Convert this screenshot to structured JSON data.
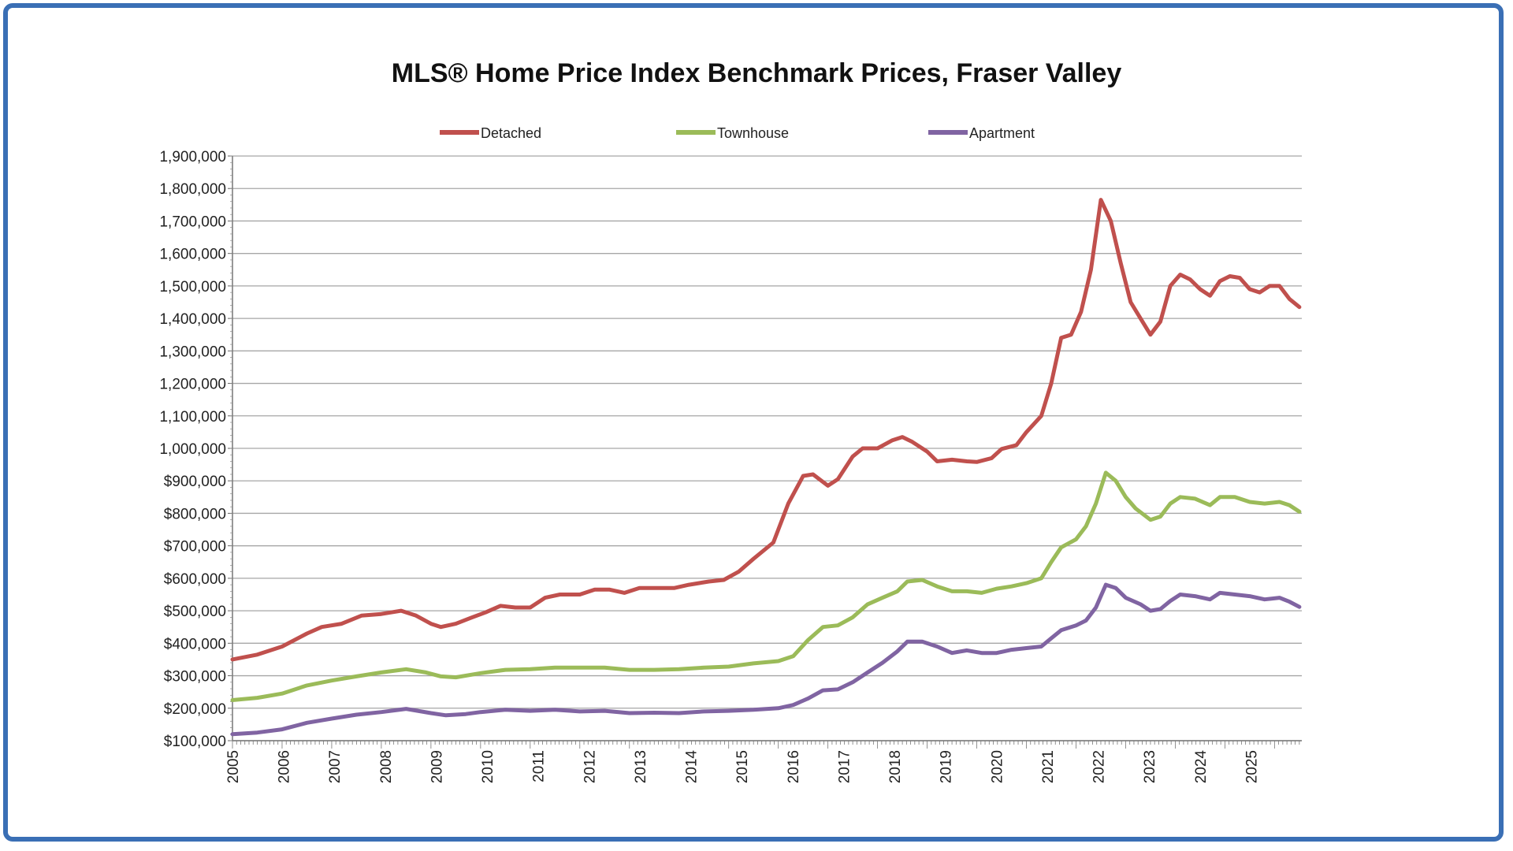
{
  "chart_data": {
    "type": "line",
    "title": "MLS® Home Price Index Benchmark Prices, Fraser Valley",
    "xlabel": "",
    "ylabel": "",
    "xlim": [
      2005.0,
      2025.7
    ],
    "ylim": [
      100000,
      1900000
    ],
    "x_ticks": [
      "2005",
      "2006",
      "2007",
      "2008",
      "2009",
      "2010",
      "2011",
      "2012",
      "2013",
      "2014",
      "2015",
      "2016",
      "2017",
      "2018",
      "2019",
      "2020",
      "2021",
      "2022",
      "2023",
      "2024",
      "2025"
    ],
    "y_ticks": [
      {
        "value": 100000,
        "label": "$100,000"
      },
      {
        "value": 200000,
        "label": "$200,000"
      },
      {
        "value": 300000,
        "label": "$300,000"
      },
      {
        "value": 400000,
        "label": "$400,000"
      },
      {
        "value": 500000,
        "label": "$500,000"
      },
      {
        "value": 600000,
        "label": "$600,000"
      },
      {
        "value": 700000,
        "label": "$700,000"
      },
      {
        "value": 800000,
        "label": "$800,000"
      },
      {
        "value": 900000,
        "label": "$900,000"
      },
      {
        "value": 1000000,
        "label": "1,000,000"
      },
      {
        "value": 1100000,
        "label": "1,100,000"
      },
      {
        "value": 1200000,
        "label": "1,200,000"
      },
      {
        "value": 1300000,
        "label": "1,300,000"
      },
      {
        "value": 1400000,
        "label": "1,400,000"
      },
      {
        "value": 1500000,
        "label": "1,500,000"
      },
      {
        "value": 1600000,
        "label": "1,600,000"
      },
      {
        "value": 1700000,
        "label": "1,700,000"
      },
      {
        "value": 1800000,
        "label": "1,800,000"
      },
      {
        "value": 1900000,
        "label": "1,900,000"
      }
    ],
    "grid": true,
    "legend_position": "top",
    "series": [
      {
        "name": "Detached",
        "color": "#c0504d",
        "points": [
          [
            2005.0,
            350000
          ],
          [
            2005.5,
            365000
          ],
          [
            2006.0,
            390000
          ],
          [
            2006.5,
            430000
          ],
          [
            2006.8,
            450000
          ],
          [
            2007.2,
            460000
          ],
          [
            2007.6,
            485000
          ],
          [
            2008.0,
            490000
          ],
          [
            2008.4,
            500000
          ],
          [
            2008.7,
            485000
          ],
          [
            2009.0,
            460000
          ],
          [
            2009.2,
            450000
          ],
          [
            2009.5,
            460000
          ],
          [
            2009.8,
            478000
          ],
          [
            2010.1,
            495000
          ],
          [
            2010.4,
            515000
          ],
          [
            2010.7,
            510000
          ],
          [
            2011.0,
            510000
          ],
          [
            2011.3,
            540000
          ],
          [
            2011.6,
            550000
          ],
          [
            2012.0,
            550000
          ],
          [
            2012.3,
            565000
          ],
          [
            2012.6,
            565000
          ],
          [
            2012.9,
            555000
          ],
          [
            2013.2,
            570000
          ],
          [
            2013.6,
            570000
          ],
          [
            2013.9,
            570000
          ],
          [
            2014.2,
            580000
          ],
          [
            2014.6,
            590000
          ],
          [
            2014.9,
            595000
          ],
          [
            2015.2,
            620000
          ],
          [
            2015.5,
            660000
          ],
          [
            2015.9,
            710000
          ],
          [
            2016.2,
            830000
          ],
          [
            2016.5,
            915000
          ],
          [
            2016.7,
            920000
          ],
          [
            2017.0,
            885000
          ],
          [
            2017.2,
            905000
          ],
          [
            2017.5,
            975000
          ],
          [
            2017.7,
            1000000
          ],
          [
            2018.0,
            1000000
          ],
          [
            2018.3,
            1025000
          ],
          [
            2018.5,
            1035000
          ],
          [
            2018.7,
            1020000
          ],
          [
            2019.0,
            990000
          ],
          [
            2019.2,
            960000
          ],
          [
            2019.5,
            965000
          ],
          [
            2019.8,
            960000
          ],
          [
            2020.0,
            958000
          ],
          [
            2020.3,
            970000
          ],
          [
            2020.5,
            998000
          ],
          [
            2020.8,
            1010000
          ],
          [
            2021.0,
            1050000
          ],
          [
            2021.3,
            1100000
          ],
          [
            2021.5,
            1200000
          ],
          [
            2021.7,
            1340000
          ],
          [
            2021.9,
            1350000
          ],
          [
            2022.1,
            1420000
          ],
          [
            2022.3,
            1550000
          ],
          [
            2022.5,
            1765000
          ],
          [
            2022.7,
            1700000
          ],
          [
            2022.9,
            1570000
          ],
          [
            2023.1,
            1450000
          ],
          [
            2023.3,
            1400000
          ],
          [
            2023.5,
            1350000
          ],
          [
            2023.7,
            1390000
          ],
          [
            2023.9,
            1500000
          ],
          [
            2024.1,
            1535000
          ],
          [
            2024.3,
            1520000
          ],
          [
            2024.5,
            1490000
          ],
          [
            2024.7,
            1470000
          ],
          [
            2024.9,
            1515000
          ],
          [
            2025.1,
            1530000
          ],
          [
            2025.3,
            1525000
          ],
          [
            2025.5,
            1490000
          ],
          [
            2025.7,
            1480000
          ],
          [
            2025.9,
            1500000
          ],
          [
            2026.1,
            1500000
          ],
          [
            2026.3,
            1460000
          ],
          [
            2026.5,
            1435000
          ]
        ]
      },
      {
        "name": "Townhouse",
        "color": "#9bbb59",
        "points": [
          [
            2005.0,
            225000
          ],
          [
            2005.5,
            232000
          ],
          [
            2006.0,
            245000
          ],
          [
            2006.5,
            270000
          ],
          [
            2007.0,
            285000
          ],
          [
            2007.5,
            298000
          ],
          [
            2008.0,
            310000
          ],
          [
            2008.5,
            320000
          ],
          [
            2008.9,
            310000
          ],
          [
            2009.2,
            298000
          ],
          [
            2009.5,
            295000
          ],
          [
            2010.0,
            308000
          ],
          [
            2010.5,
            318000
          ],
          [
            2011.0,
            320000
          ],
          [
            2011.5,
            325000
          ],
          [
            2012.0,
            325000
          ],
          [
            2012.5,
            325000
          ],
          [
            2013.0,
            318000
          ],
          [
            2013.5,
            318000
          ],
          [
            2014.0,
            320000
          ],
          [
            2014.5,
            325000
          ],
          [
            2015.0,
            328000
          ],
          [
            2015.5,
            338000
          ],
          [
            2016.0,
            345000
          ],
          [
            2016.3,
            360000
          ],
          [
            2016.6,
            410000
          ],
          [
            2016.9,
            450000
          ],
          [
            2017.2,
            455000
          ],
          [
            2017.5,
            480000
          ],
          [
            2017.8,
            520000
          ],
          [
            2018.1,
            540000
          ],
          [
            2018.4,
            560000
          ],
          [
            2018.6,
            590000
          ],
          [
            2018.9,
            595000
          ],
          [
            2019.2,
            575000
          ],
          [
            2019.5,
            560000
          ],
          [
            2019.8,
            560000
          ],
          [
            2020.1,
            555000
          ],
          [
            2020.4,
            568000
          ],
          [
            2020.7,
            575000
          ],
          [
            2021.0,
            585000
          ],
          [
            2021.3,
            600000
          ],
          [
            2021.5,
            650000
          ],
          [
            2021.7,
            695000
          ],
          [
            2022.0,
            720000
          ],
          [
            2022.2,
            760000
          ],
          [
            2022.4,
            830000
          ],
          [
            2022.6,
            925000
          ],
          [
            2022.8,
            900000
          ],
          [
            2023.0,
            850000
          ],
          [
            2023.2,
            815000
          ],
          [
            2023.5,
            780000
          ],
          [
            2023.7,
            790000
          ],
          [
            2023.9,
            830000
          ],
          [
            2024.1,
            850000
          ],
          [
            2024.4,
            845000
          ],
          [
            2024.7,
            825000
          ],
          [
            2024.9,
            850000
          ],
          [
            2025.2,
            850000
          ],
          [
            2025.5,
            835000
          ],
          [
            2025.8,
            830000
          ],
          [
            2026.1,
            835000
          ],
          [
            2026.3,
            825000
          ],
          [
            2026.5,
            805000
          ]
        ]
      },
      {
        "name": "Apartment",
        "color": "#8064a2",
        "points": [
          [
            2005.0,
            120000
          ],
          [
            2005.5,
            125000
          ],
          [
            2006.0,
            135000
          ],
          [
            2006.5,
            155000
          ],
          [
            2007.0,
            168000
          ],
          [
            2007.5,
            180000
          ],
          [
            2008.0,
            188000
          ],
          [
            2008.5,
            198000
          ],
          [
            2009.0,
            185000
          ],
          [
            2009.3,
            178000
          ],
          [
            2009.7,
            182000
          ],
          [
            2010.0,
            188000
          ],
          [
            2010.5,
            195000
          ],
          [
            2011.0,
            192000
          ],
          [
            2011.5,
            195000
          ],
          [
            2012.0,
            190000
          ],
          [
            2012.5,
            192000
          ],
          [
            2013.0,
            185000
          ],
          [
            2013.5,
            186000
          ],
          [
            2014.0,
            185000
          ],
          [
            2014.5,
            190000
          ],
          [
            2015.0,
            192000
          ],
          [
            2015.5,
            195000
          ],
          [
            2016.0,
            200000
          ],
          [
            2016.3,
            210000
          ],
          [
            2016.6,
            230000
          ],
          [
            2016.9,
            255000
          ],
          [
            2017.2,
            258000
          ],
          [
            2017.5,
            280000
          ],
          [
            2017.8,
            310000
          ],
          [
            2018.1,
            340000
          ],
          [
            2018.4,
            375000
          ],
          [
            2018.6,
            405000
          ],
          [
            2018.9,
            405000
          ],
          [
            2019.2,
            390000
          ],
          [
            2019.5,
            370000
          ],
          [
            2019.8,
            378000
          ],
          [
            2020.1,
            370000
          ],
          [
            2020.4,
            370000
          ],
          [
            2020.7,
            380000
          ],
          [
            2021.0,
            385000
          ],
          [
            2021.3,
            390000
          ],
          [
            2021.5,
            415000
          ],
          [
            2021.7,
            440000
          ],
          [
            2022.0,
            455000
          ],
          [
            2022.2,
            470000
          ],
          [
            2022.4,
            510000
          ],
          [
            2022.6,
            580000
          ],
          [
            2022.8,
            570000
          ],
          [
            2023.0,
            540000
          ],
          [
            2023.3,
            520000
          ],
          [
            2023.5,
            500000
          ],
          [
            2023.7,
            505000
          ],
          [
            2023.9,
            530000
          ],
          [
            2024.1,
            550000
          ],
          [
            2024.4,
            545000
          ],
          [
            2024.7,
            535000
          ],
          [
            2024.9,
            555000
          ],
          [
            2025.2,
            550000
          ],
          [
            2025.5,
            545000
          ],
          [
            2025.8,
            535000
          ],
          [
            2026.1,
            540000
          ],
          [
            2026.3,
            528000
          ],
          [
            2026.5,
            512000
          ]
        ]
      }
    ]
  }
}
